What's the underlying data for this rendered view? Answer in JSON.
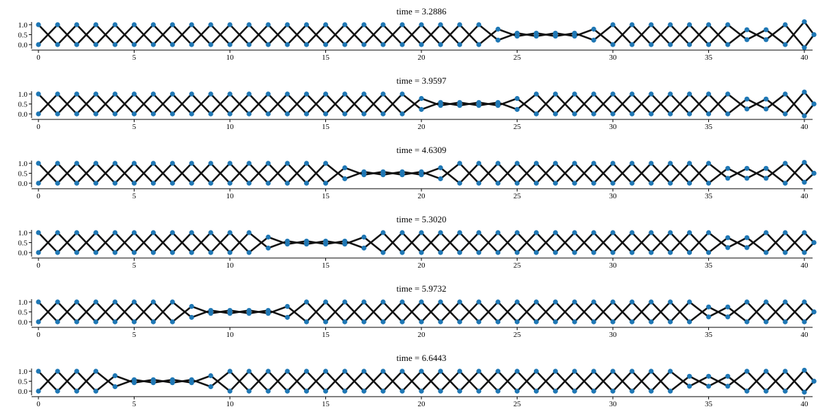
{
  "figure": {
    "plot_color": "#1f77b4",
    "line_color": "#111111"
  },
  "chart_data": [
    {
      "type": "scatter",
      "title": "time = 3.2886",
      "xlim": [
        -0.5,
        40.5
      ],
      "ylim": [
        0.0,
        1.0
      ],
      "xticks": [
        "0",
        "5",
        "10",
        "15",
        "20",
        "25",
        "30",
        "35",
        "40"
      ],
      "yticks": [
        "1.0",
        "0.5",
        "0.0"
      ],
      "spacing": 1,
      "defect_center": 26.5,
      "extra_center": 37.5,
      "right_end": [
        1.15,
        -0.15
      ],
      "grid": false
    },
    {
      "type": "scatter",
      "title": "time = 3.9597",
      "xlim": [
        -0.5,
        40.5
      ],
      "ylim": [
        0.0,
        1.0
      ],
      "xticks": [
        "0",
        "5",
        "10",
        "15",
        "20",
        "25",
        "30",
        "35",
        "40"
      ],
      "yticks": [
        "1.0",
        "0.5",
        "0.0"
      ],
      "spacing": 1,
      "defect_center": 22.5,
      "extra_center": 37.5,
      "right_end": [
        1.1,
        -0.1
      ],
      "grid": false
    },
    {
      "type": "scatter",
      "title": "time = 4.6309",
      "xlim": [
        -0.5,
        40.5
      ],
      "ylim": [
        0.0,
        1.0
      ],
      "xticks": [
        "0",
        "5",
        "10",
        "15",
        "20",
        "25",
        "30",
        "35",
        "40"
      ],
      "yticks": [
        "1.0",
        "0.5",
        "0.0"
      ],
      "spacing": 1,
      "defect_center": 18.5,
      "extra_center": 37.0,
      "right_end": [
        1.05,
        0.05
      ],
      "grid": false
    },
    {
      "type": "scatter",
      "title": "time = 5.3020",
      "xlim": [
        -0.5,
        40.5
      ],
      "ylim": [
        0.0,
        1.0
      ],
      "xticks": [
        "0",
        "5",
        "10",
        "15",
        "20",
        "25",
        "30",
        "35",
        "40"
      ],
      "yticks": [
        "1.0",
        "0.5",
        "0.0"
      ],
      "spacing": 1,
      "defect_center": 14.5,
      "extra_center": 36.5,
      "right_end": [
        1.0,
        0.0
      ],
      "grid": false
    },
    {
      "type": "scatter",
      "title": "time = 5.9732",
      "xlim": [
        -0.5,
        40.5
      ],
      "ylim": [
        0.0,
        1.0
      ],
      "xticks": [
        "0",
        "5",
        "10",
        "15",
        "20",
        "25",
        "30",
        "35",
        "40"
      ],
      "yticks": [
        "1.0",
        "0.5",
        "0.0"
      ],
      "spacing": 1,
      "defect_center": 10.5,
      "extra_center": 35.5,
      "right_end": [
        1.0,
        0.0
      ],
      "grid": false
    },
    {
      "type": "scatter",
      "title": "time = 6.6443",
      "xlim": [
        -0.5,
        40.5
      ],
      "ylim": [
        0.0,
        1.0
      ],
      "xticks": [
        "0",
        "5",
        "10",
        "15",
        "20",
        "25",
        "30",
        "35",
        "40"
      ],
      "yticks": [
        "1.0",
        "0.5",
        "0.0"
      ],
      "spacing": 1,
      "defect_center": 6.5,
      "extra_center": 35.0,
      "right_end": [
        1.05,
        -0.05
      ],
      "grid": false
    }
  ]
}
